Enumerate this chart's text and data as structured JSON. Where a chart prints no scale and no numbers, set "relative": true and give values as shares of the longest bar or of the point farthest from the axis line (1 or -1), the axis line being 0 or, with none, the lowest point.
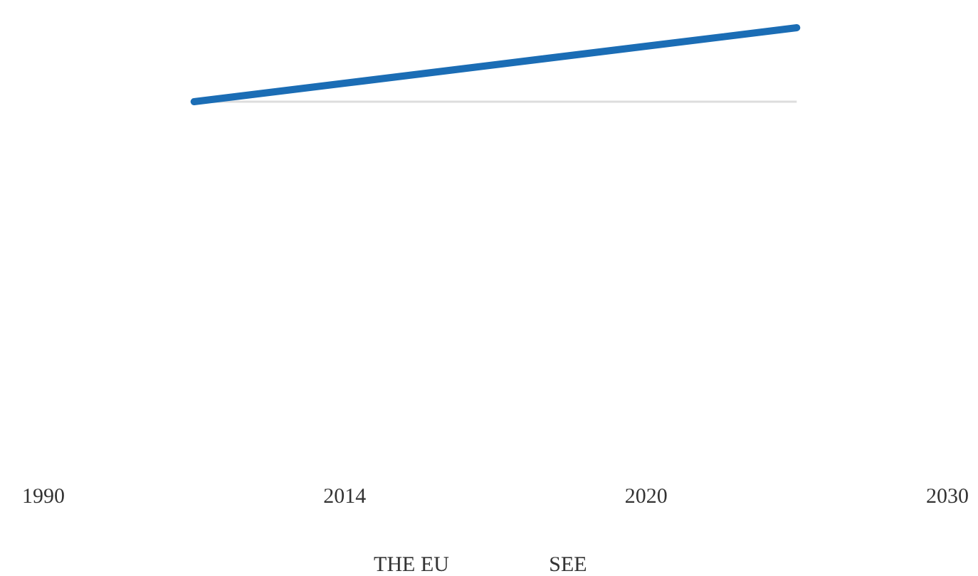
{
  "chart_data": {
    "type": "line",
    "relative": true,
    "categories": [
      "1990",
      null,
      "2014",
      null,
      "2020",
      null,
      "2030"
    ],
    "series": [
      {
        "color": "#1b6db5",
        "values": [
          null,
          0,
          0.25,
          0.5,
          0.75,
          1,
          null
        ]
      }
    ],
    "annotations": [
      "THE EU",
      "SEE"
    ],
    "grid": false,
    "marker": "none",
    "line_style": "solid"
  }
}
